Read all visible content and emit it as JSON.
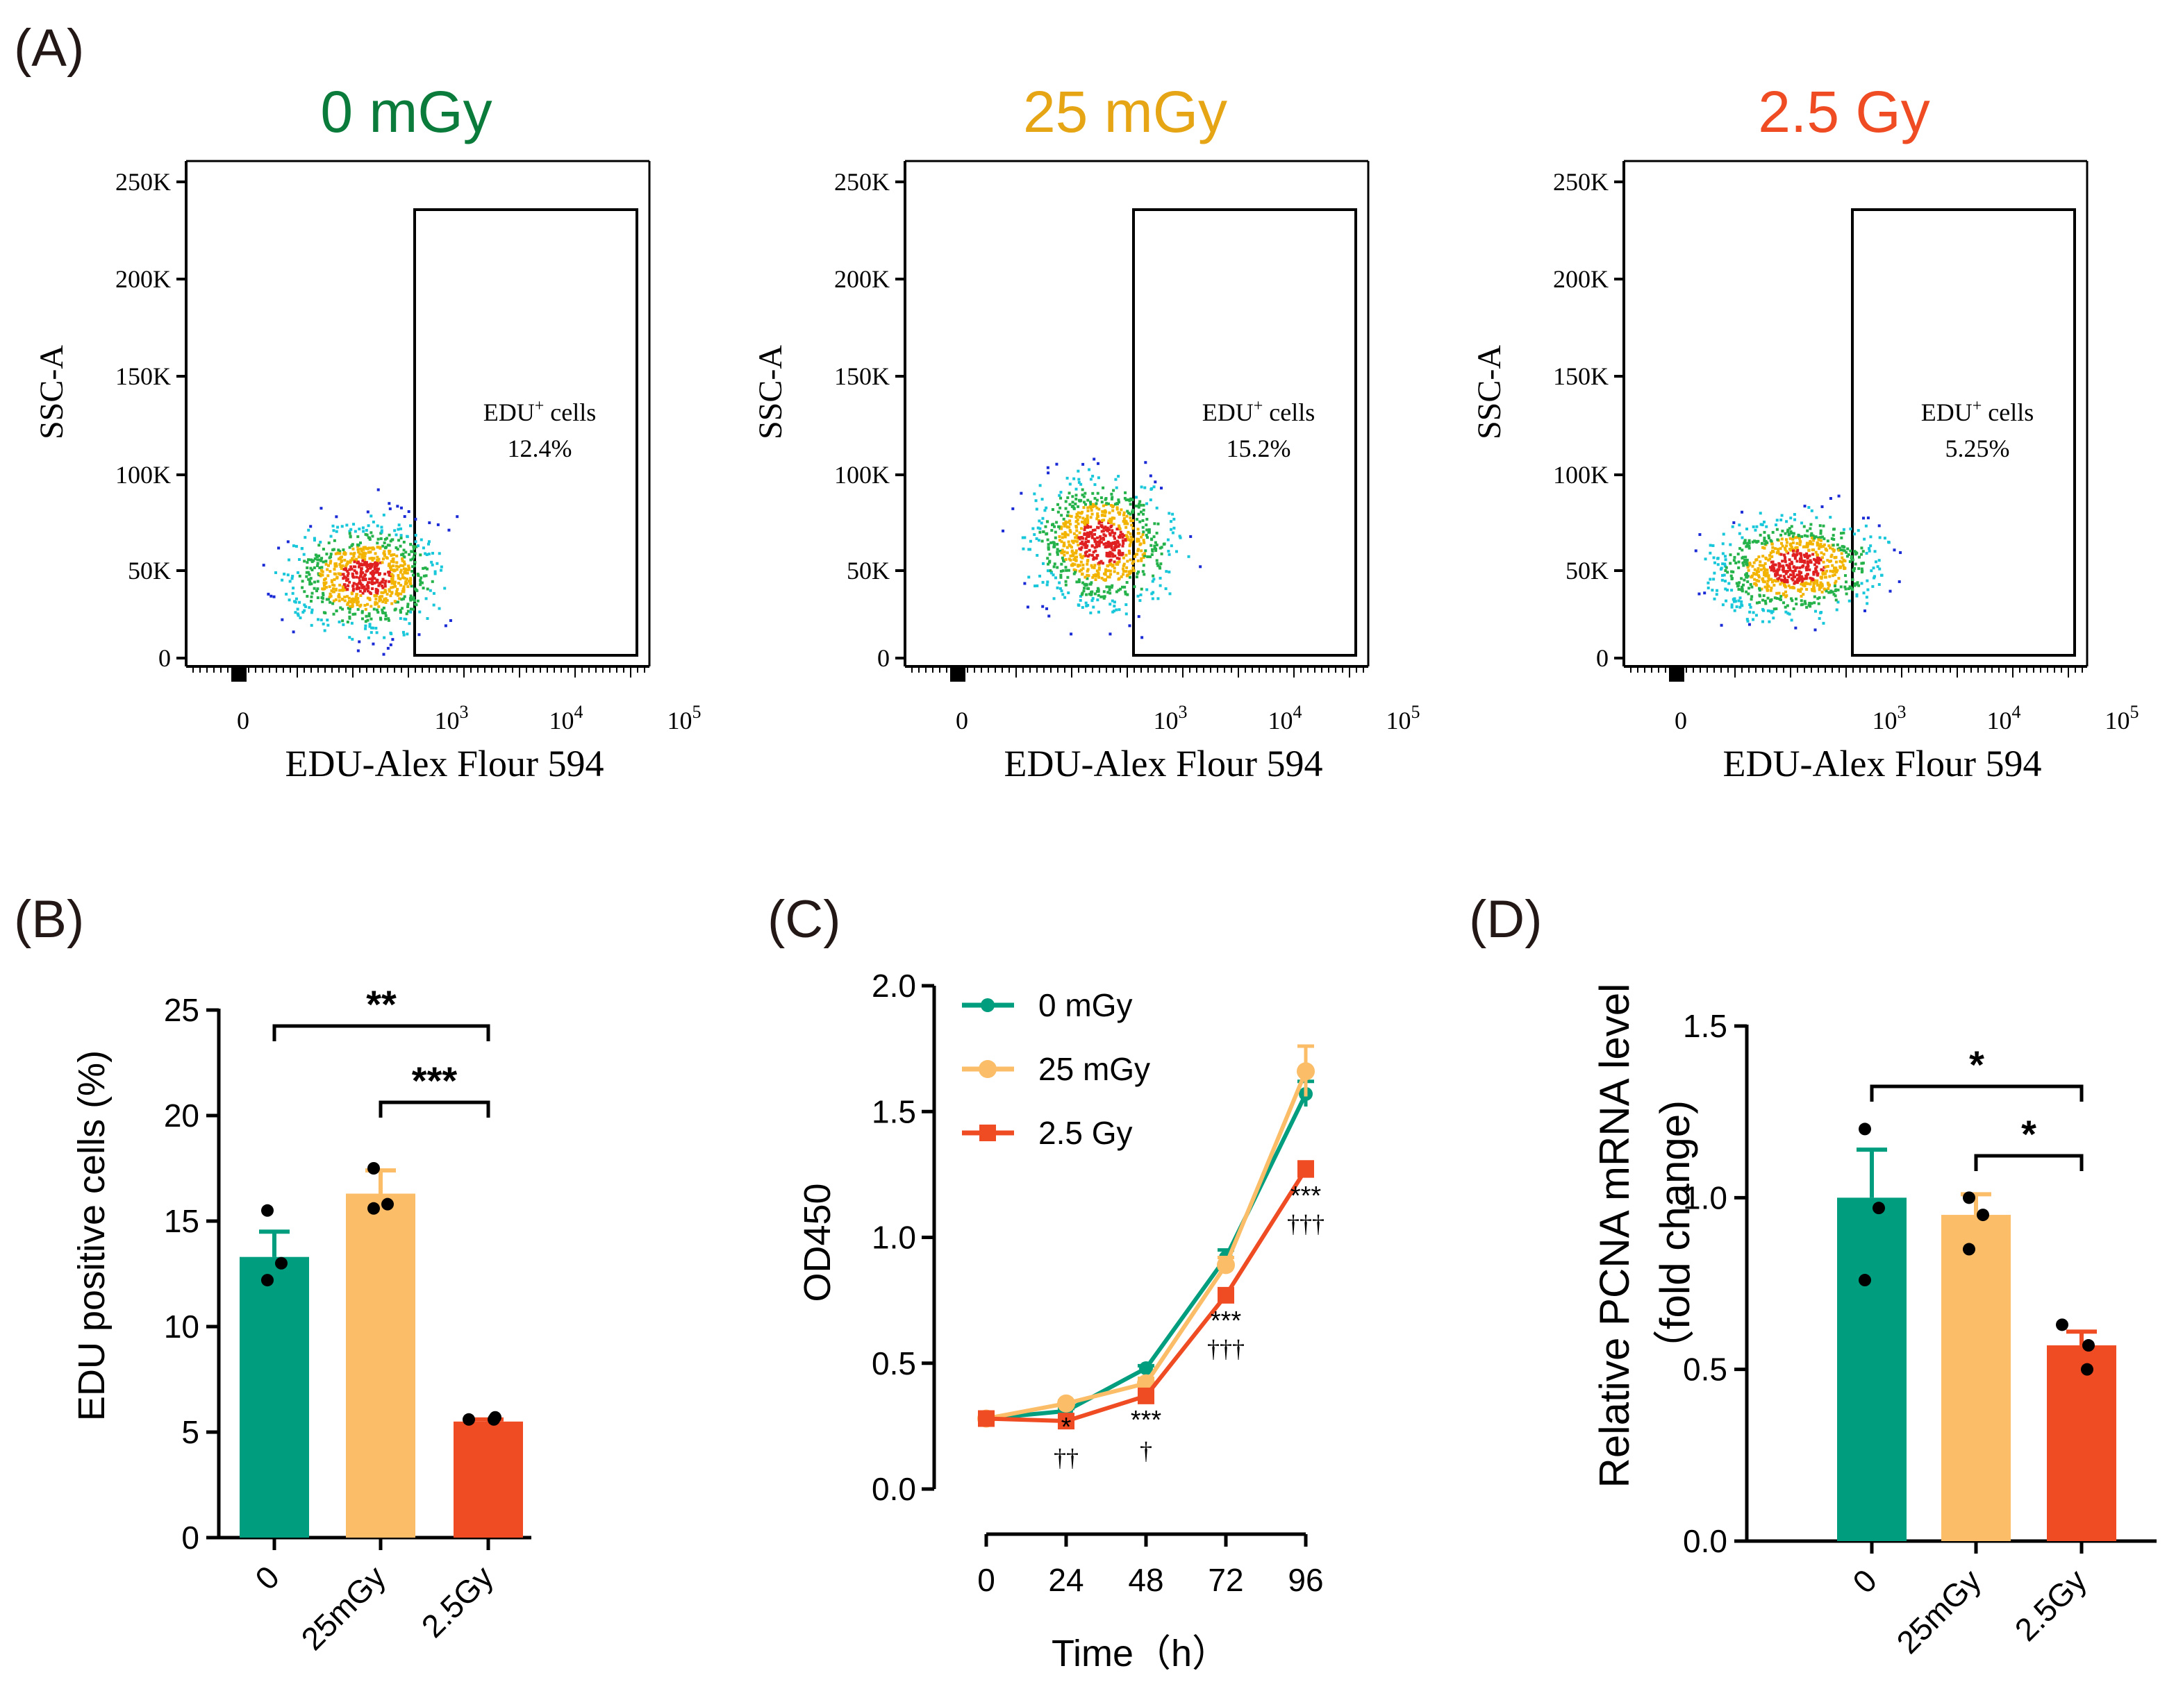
{
  "colors": {
    "c0": "#009e7e",
    "c25": "#fbbd67",
    "c25_title": "#e6a514",
    "c0_title": "#0a7b3a",
    "c2_5": "#f04c24",
    "axis": "#000000"
  },
  "flow": {
    "panel_label": "(A)",
    "panels": [
      {
        "title": "0 mGy",
        "gate_line1": "EDU",
        "gate_sup": "+",
        "gate_line1b": " cells",
        "gate_pct": "12.4%"
      },
      {
        "title": "25 mGy",
        "gate_line1": "EDU",
        "gate_sup": "+",
        "gate_line1b": " cells",
        "gate_pct": "15.2%"
      },
      {
        "title": "2.5 Gy",
        "gate_line1": "EDU",
        "gate_sup": "+",
        "gate_line1b": " cells",
        "gate_pct": "5.25%"
      }
    ],
    "ylabel": "SSC-A",
    "xlabel": "EDU-Alex Flour 594",
    "yticks": [
      "250K",
      "200K",
      "150K",
      "100K",
      "50K",
      "0"
    ],
    "xtick_zero": "0",
    "xtick_base": "10",
    "xtick_exps": [
      "3",
      "4",
      "5"
    ]
  },
  "chart_data": [
    {
      "panel": "(B)",
      "type": "bar",
      "categories": [
        "0",
        "25mGy",
        "2.5Gy"
      ],
      "values": [
        13.3,
        16.3,
        5.5
      ],
      "errors": [
        1.2,
        1.1,
        0.1
      ],
      "points": [
        [
          15.5,
          13.0,
          12.2
        ],
        [
          17.5,
          15.8,
          15.6
        ],
        [
          5.6,
          5.7,
          5.6
        ]
      ],
      "ylabel": "EDU positive cells (%)",
      "ylim": [
        0,
        25
      ],
      "yticks": [
        0,
        5,
        10,
        15,
        20,
        25
      ],
      "significance": [
        {
          "from": 0,
          "to": 2,
          "label": "**"
        },
        {
          "from": 1,
          "to": 2,
          "label": "***"
        }
      ]
    },
    {
      "panel": "(C)",
      "type": "line",
      "x": [
        0,
        24,
        48,
        72,
        96
      ],
      "xticks": [
        "0",
        "24",
        "48",
        "72",
        "96"
      ],
      "xlabel": "Time（h）",
      "ylabel": "OD450",
      "ylim": [
        0.0,
        2.0
      ],
      "yticks": [
        "0.0",
        "0.5",
        "1.0",
        "1.5",
        "2.0"
      ],
      "series": [
        {
          "name": "0 mGy",
          "values": [
            0.28,
            0.31,
            0.48,
            0.92,
            1.57
          ],
          "errors": [
            0.01,
            0.01,
            0.01,
            0.03,
            0.05
          ]
        },
        {
          "name": "25 mGy",
          "values": [
            0.28,
            0.34,
            0.42,
            0.89,
            1.66
          ],
          "errors": [
            0.01,
            0.01,
            0.02,
            0.03,
            0.1
          ]
        },
        {
          "name": "2.5 Gy",
          "values": [
            0.28,
            0.27,
            0.37,
            0.77,
            1.27
          ],
          "errors": [
            0.01,
            0.02,
            0.02,
            0.02,
            0.03
          ]
        }
      ],
      "annotations": [
        {
          "x": 24,
          "star": "*",
          "dagger": "††"
        },
        {
          "x": 48,
          "star": "***",
          "dagger": "†"
        },
        {
          "x": 72,
          "star": "***",
          "dagger": "†††"
        },
        {
          "x": 96,
          "star": "***",
          "dagger": "†††"
        }
      ]
    },
    {
      "panel": "(D)",
      "type": "bar",
      "categories": [
        "0",
        "25mGy",
        "2.5Gy"
      ],
      "values": [
        1.0,
        0.95,
        0.57
      ],
      "errors": [
        0.14,
        0.06,
        0.04
      ],
      "points": [
        [
          1.2,
          0.97,
          0.76
        ],
        [
          1.0,
          0.95,
          0.85
        ],
        [
          0.63,
          0.57,
          0.5
        ]
      ],
      "ylabel": "Relative PCNA mRNA level",
      "ylabel2": "（fold change)",
      "ylim": [
        0.0,
        1.5
      ],
      "yticks": [
        "0.0",
        "0.5",
        "1.0",
        "1.5"
      ],
      "significance": [
        {
          "from": 0,
          "to": 2,
          "label": "*"
        },
        {
          "from": 1,
          "to": 2,
          "label": "*"
        }
      ]
    }
  ]
}
